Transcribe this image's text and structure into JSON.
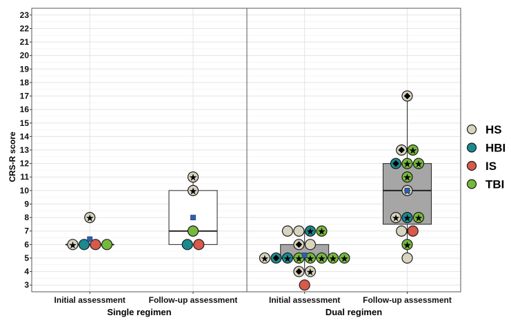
{
  "chart_data": {
    "type": "scatter",
    "ylabel": "CRS-R score",
    "ylim": [
      2.5,
      23.5
    ],
    "yticks": [
      3,
      4,
      5,
      6,
      7,
      8,
      9,
      10,
      11,
      12,
      13,
      14,
      15,
      16,
      17,
      18,
      19,
      20,
      21,
      22,
      23
    ],
    "grid": true,
    "legend_position": "right",
    "legend": [
      {
        "name": "HS",
        "color": "#d9d4c0"
      },
      {
        "name": "HBI",
        "color": "#1a8a8f"
      },
      {
        "name": "IS",
        "color": "#d75a4a"
      },
      {
        "name": "TBI",
        "color": "#76b83c"
      }
    ],
    "facets": [
      {
        "label": "Single regimen",
        "categories": [
          "Initial assessment",
          "Follow-up assessment"
        ],
        "boxes": [
          {
            "q1": 6,
            "median": 6,
            "q3": 6,
            "whisker_low": 6,
            "whisker_high": 6,
            "mean": 6.4,
            "fill": "#ffffff",
            "outliers": [
              8
            ]
          },
          {
            "q1": 6,
            "median": 7,
            "q3": 10,
            "whisker_low": 6,
            "whisker_high": 11,
            "mean": 8,
            "fill": "#ffffff",
            "outliers": []
          }
        ],
        "points": [
          {
            "cat": 0,
            "y": 8,
            "group": "HS",
            "marker": "star"
          },
          {
            "cat": 0,
            "y": 6,
            "group": "HS",
            "marker": "star"
          },
          {
            "cat": 0,
            "y": 6,
            "group": "HBI",
            "marker": ""
          },
          {
            "cat": 0,
            "y": 6,
            "group": "IS",
            "marker": ""
          },
          {
            "cat": 0,
            "y": 6,
            "group": "TBI",
            "marker": ""
          },
          {
            "cat": 1,
            "y": 11,
            "group": "HS",
            "marker": "star"
          },
          {
            "cat": 1,
            "y": 10,
            "group": "HS",
            "marker": "star"
          },
          {
            "cat": 1,
            "y": 6,
            "group": "HBI",
            "marker": ""
          },
          {
            "cat": 1,
            "y": 6,
            "group": "IS",
            "marker": ""
          },
          {
            "cat": 1,
            "y": 7,
            "group": "TBI",
            "marker": ""
          }
        ]
      },
      {
        "label": "Dual regimen",
        "categories": [
          "Initial assessment",
          "Follow-up assessment"
        ],
        "boxes": [
          {
            "q1": 5,
            "median": 5,
            "q3": 6,
            "whisker_low": 4,
            "whisker_high": 7,
            "mean": 5.2,
            "fill": "#a6a6a6",
            "outliers": [
              3
            ]
          },
          {
            "q1": 7.5,
            "median": 10,
            "q3": 12,
            "whisker_low": 5,
            "whisker_high": 17,
            "mean": 10,
            "fill": "#a6a6a6",
            "outliers": []
          }
        ],
        "points": [
          {
            "cat": 0,
            "y": 7,
            "group": "HS",
            "marker": ""
          },
          {
            "cat": 0,
            "y": 7,
            "group": "HS",
            "marker": ""
          },
          {
            "cat": 0,
            "y": 7,
            "group": "HBI",
            "marker": "star"
          },
          {
            "cat": 0,
            "y": 7,
            "group": "TBI",
            "marker": "star"
          },
          {
            "cat": 0,
            "y": 6,
            "group": "HS",
            "marker": "diamond"
          },
          {
            "cat": 0,
            "y": 6,
            "group": "HS",
            "marker": ""
          },
          {
            "cat": 0,
            "y": 5,
            "group": "HS",
            "marker": "star"
          },
          {
            "cat": 0,
            "y": 5,
            "group": "HBI",
            "marker": "diamond"
          },
          {
            "cat": 0,
            "y": 5,
            "group": "HBI",
            "marker": "star"
          },
          {
            "cat": 0,
            "y": 5,
            "group": "TBI",
            "marker": "star"
          },
          {
            "cat": 0,
            "y": 5,
            "group": "TBI",
            "marker": "star"
          },
          {
            "cat": 0,
            "y": 5,
            "group": "TBI",
            "marker": "star"
          },
          {
            "cat": 0,
            "y": 5,
            "group": "TBI",
            "marker": "star"
          },
          {
            "cat": 0,
            "y": 5,
            "group": "TBI",
            "marker": "star"
          },
          {
            "cat": 0,
            "y": 4,
            "group": "HS",
            "marker": "diamond"
          },
          {
            "cat": 0,
            "y": 4,
            "group": "HS",
            "marker": "star"
          },
          {
            "cat": 0,
            "y": 3,
            "group": "IS",
            "marker": ""
          },
          {
            "cat": 1,
            "y": 17,
            "group": "HS",
            "marker": "diamond"
          },
          {
            "cat": 1,
            "y": 13,
            "group": "HS",
            "marker": "diamond"
          },
          {
            "cat": 1,
            "y": 13,
            "group": "TBI",
            "marker": "star"
          },
          {
            "cat": 1,
            "y": 12,
            "group": "HBI",
            "marker": "diamond"
          },
          {
            "cat": 1,
            "y": 12,
            "group": "TBI",
            "marker": "star"
          },
          {
            "cat": 1,
            "y": 12,
            "group": "TBI",
            "marker": "star"
          },
          {
            "cat": 1,
            "y": 11,
            "group": "TBI",
            "marker": "star"
          },
          {
            "cat": 1,
            "y": 10,
            "group": "HS",
            "marker": "star"
          },
          {
            "cat": 1,
            "y": 8,
            "group": "HS",
            "marker": "star"
          },
          {
            "cat": 1,
            "y": 8,
            "group": "HBI",
            "marker": "star"
          },
          {
            "cat": 1,
            "y": 8,
            "group": "TBI",
            "marker": "star"
          },
          {
            "cat": 1,
            "y": 7,
            "group": "HS",
            "marker": ""
          },
          {
            "cat": 1,
            "y": 7,
            "group": "IS",
            "marker": ""
          },
          {
            "cat": 1,
            "y": 6,
            "group": "TBI",
            "marker": "star"
          },
          {
            "cat": 1,
            "y": 5,
            "group": "HS",
            "marker": ""
          }
        ]
      }
    ]
  }
}
